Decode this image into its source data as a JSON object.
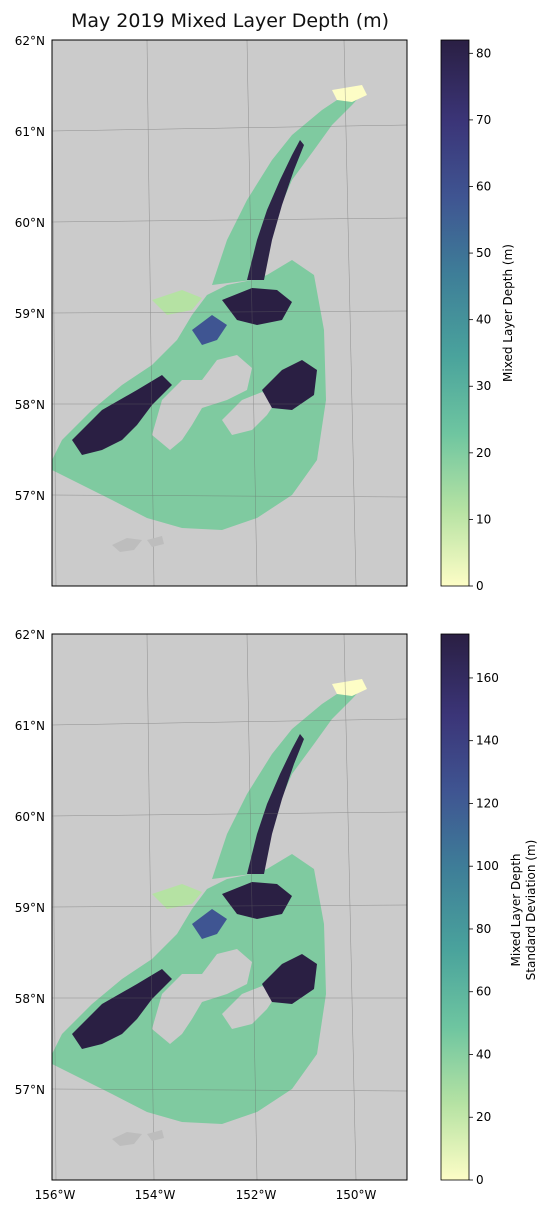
{
  "title": "May 2019 Mixed Layer Depth (m)",
  "lat_labels": [
    "62°N",
    "61°N",
    "60°N",
    "59°N",
    "58°N",
    "57°N"
  ],
  "lon_labels": [
    "156°W",
    "154°W",
    "152°W",
    "150°W"
  ],
  "colors": {
    "land": "#cbcbcb",
    "ocean_bg": "#ffffff",
    "colormap": [
      "#fdfdc6",
      "#b5e2a3",
      "#6ec5a0",
      "#4aa39c",
      "#3e7e98",
      "#3f5592",
      "#3b3578",
      "#2a1f43"
    ]
  },
  "panels": [
    {
      "colorbar": {
        "label_lines": [
          "Mixed Layer Depth (m)"
        ],
        "ticks": [
          "0",
          "10",
          "20",
          "30",
          "40",
          "50",
          "60",
          "70",
          "80"
        ],
        "max": 82
      }
    },
    {
      "colorbar": {
        "label_lines": [
          "Mixed Layer Depth",
          "Standard Deviation (m)"
        ],
        "ticks": [
          "0",
          "20",
          "40",
          "60",
          "80",
          "100",
          "120",
          "140",
          "160"
        ],
        "max": 174
      }
    }
  ]
}
